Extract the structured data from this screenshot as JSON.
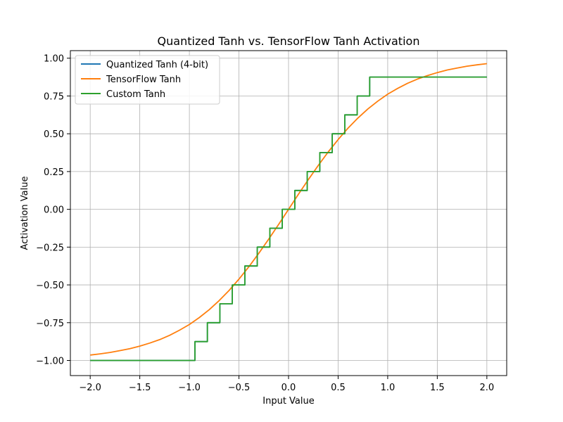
{
  "chart_data": {
    "type": "line",
    "title": "Quantized Tanh vs. TensorFlow Tanh Activation",
    "xlabel": "Input Value",
    "ylabel": "Activation Value",
    "xlim": [
      -2.2,
      2.2
    ],
    "ylim": [
      -1.1,
      1.05
    ],
    "x_ticks": [
      -2.0,
      -1.5,
      -1.0,
      -0.5,
      0.0,
      0.5,
      1.0,
      1.5,
      2.0
    ],
    "x_tick_labels": [
      "−2.0",
      "−1.5",
      "−1.0",
      "−0.5",
      "0.0",
      "0.5",
      "1.0",
      "1.5",
      "2.0"
    ],
    "y_ticks": [
      -1.0,
      -0.75,
      -0.5,
      -0.25,
      0.0,
      0.25,
      0.5,
      0.75,
      1.0
    ],
    "y_tick_labels": [
      "−1.00",
      "−0.75",
      "−0.50",
      "−0.25",
      "0.00",
      "0.25",
      "0.50",
      "0.75",
      "1.00"
    ],
    "grid": true,
    "legend_position": "top-left",
    "series": [
      {
        "name": "Quantized Tanh (4-bit)",
        "color": "#1f77b4",
        "x": [
          -2.0,
          -0.944,
          -0.944,
          -0.818,
          -0.818,
          -0.693,
          -0.693,
          -0.567,
          -0.567,
          -0.441,
          -0.441,
          -0.315,
          -0.315,
          -0.189,
          -0.189,
          -0.063,
          -0.063,
          0.063,
          0.063,
          0.189,
          0.189,
          0.315,
          0.315,
          0.441,
          0.441,
          0.567,
          0.567,
          0.693,
          0.693,
          0.818,
          0.818,
          2.0
        ],
        "y": [
          -1.0,
          -1.0,
          -0.875,
          -0.875,
          -0.75,
          -0.75,
          -0.625,
          -0.625,
          -0.5,
          -0.5,
          -0.375,
          -0.375,
          -0.25,
          -0.25,
          -0.125,
          -0.125,
          0.0,
          0.0,
          0.125,
          0.125,
          0.25,
          0.25,
          0.375,
          0.375,
          0.5,
          0.5,
          0.625,
          0.625,
          0.75,
          0.75,
          0.875,
          0.875
        ]
      },
      {
        "name": "TensorFlow Tanh",
        "color": "#ff7f0e",
        "x": [
          -2.0,
          -1.9,
          -1.8,
          -1.7,
          -1.6,
          -1.5,
          -1.4,
          -1.3,
          -1.2,
          -1.1,
          -1.0,
          -0.9,
          -0.8,
          -0.7,
          -0.6,
          -0.5,
          -0.4,
          -0.3,
          -0.2,
          -0.1,
          0.0,
          0.1,
          0.2,
          0.3,
          0.4,
          0.5,
          0.6,
          0.7,
          0.8,
          0.9,
          1.0,
          1.1,
          1.2,
          1.3,
          1.4,
          1.5,
          1.6,
          1.7,
          1.8,
          1.9,
          2.0
        ],
        "y": [
          -0.964,
          -0.956,
          -0.947,
          -0.935,
          -0.922,
          -0.905,
          -0.885,
          -0.862,
          -0.834,
          -0.8,
          -0.762,
          -0.716,
          -0.664,
          -0.604,
          -0.537,
          -0.462,
          -0.38,
          -0.291,
          -0.197,
          -0.1,
          0.0,
          0.1,
          0.197,
          0.291,
          0.38,
          0.462,
          0.537,
          0.604,
          0.664,
          0.716,
          0.762,
          0.8,
          0.834,
          0.862,
          0.885,
          0.905,
          0.922,
          0.935,
          0.947,
          0.956,
          0.964
        ]
      },
      {
        "name": "Custom Tanh",
        "color": "#2ca02c",
        "x": [
          -2.0,
          -0.944,
          -0.944,
          -0.818,
          -0.818,
          -0.693,
          -0.693,
          -0.567,
          -0.567,
          -0.441,
          -0.441,
          -0.315,
          -0.315,
          -0.189,
          -0.189,
          -0.063,
          -0.063,
          0.063,
          0.063,
          0.189,
          0.189,
          0.315,
          0.315,
          0.441,
          0.441,
          0.567,
          0.567,
          0.693,
          0.693,
          0.818,
          0.818,
          2.0
        ],
        "y": [
          -1.0,
          -1.0,
          -0.875,
          -0.875,
          -0.75,
          -0.75,
          -0.625,
          -0.625,
          -0.5,
          -0.5,
          -0.375,
          -0.375,
          -0.25,
          -0.25,
          -0.125,
          -0.125,
          0.0,
          0.0,
          0.125,
          0.125,
          0.25,
          0.25,
          0.375,
          0.375,
          0.5,
          0.5,
          0.625,
          0.625,
          0.75,
          0.75,
          0.875,
          0.875
        ]
      }
    ]
  }
}
